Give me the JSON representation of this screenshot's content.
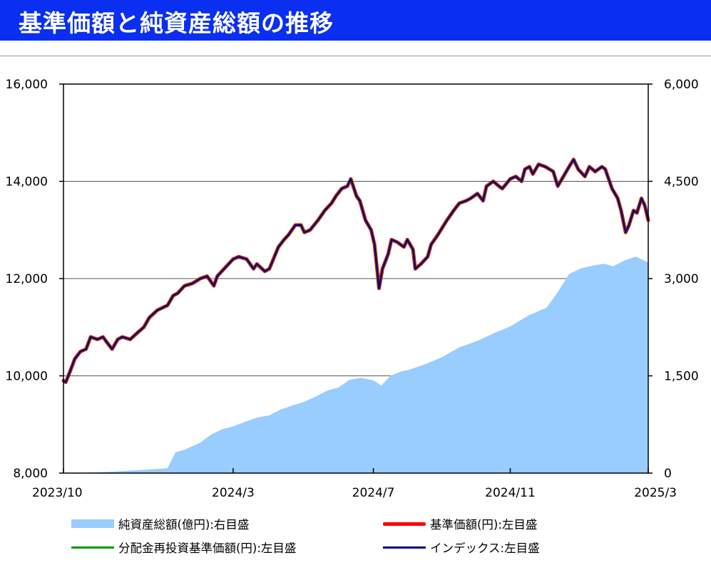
{
  "title": "基準価額と純資産総額の推移",
  "chart_data": {
    "type": "line",
    "x_tick_labels": [
      "2023/10",
      "2024/3",
      "2024/7",
      "2024/11",
      "2025/3"
    ],
    "x_range": [
      "2023/10/31",
      "2025/3/31"
    ],
    "x_ticks": [
      "2023/10/31",
      "2024/3/29",
      "2024/7/31",
      "2024/11/29",
      "2025/3/31"
    ],
    "y_left": {
      "range": [
        8000,
        16000
      ],
      "ticks": [
        8000,
        10000,
        12000,
        14000,
        16000
      ],
      "labels": [
        "8,000",
        "10,000",
        "12,000",
        "14,000",
        "16,000"
      ]
    },
    "y_right": {
      "range": [
        0,
        6000
      ],
      "ticks": [
        0,
        1500,
        3000,
        4500,
        6000
      ],
      "labels": [
        "0",
        "1,500",
        "3,000",
        "4,500",
        "6,000"
      ]
    },
    "grid": "horizontal",
    "colors": {
      "area": "#99ccff",
      "price": "#ff0000",
      "reinvest": "#009900",
      "index": "#000080"
    },
    "series": [
      {
        "name": "純資産総額(億円):右目盛",
        "kind": "area",
        "axis": "right",
        "points": [
          [
            "2023/10/31",
            0
          ],
          [
            "2023/11/15",
            5
          ],
          [
            "2023/11/30",
            12
          ],
          [
            "2023/12/15",
            25
          ],
          [
            "2023/12/29",
            40
          ],
          [
            "2024/1/15",
            55
          ],
          [
            "2024/1/31",
            75
          ],
          [
            "2024/2/7",
            320
          ],
          [
            "2024/2/15",
            360
          ],
          [
            "2024/2/29",
            470
          ],
          [
            "2024/3/10",
            600
          ],
          [
            "2024/3/20",
            680
          ],
          [
            "2024/3/29",
            720
          ],
          [
            "2024/4/10",
            800
          ],
          [
            "2024/4/20",
            860
          ],
          [
            "2024/4/30",
            890
          ],
          [
            "2024/5/10",
            980
          ],
          [
            "2024/5/20",
            1040
          ],
          [
            "2024/5/31",
            1100
          ],
          [
            "2024/6/10",
            1180
          ],
          [
            "2024/6/20",
            1270
          ],
          [
            "2024/6/30",
            1320
          ],
          [
            "2024/7/10",
            1440
          ],
          [
            "2024/7/20",
            1470
          ],
          [
            "2024/7/31",
            1430
          ],
          [
            "2024/8/7",
            1350
          ],
          [
            "2024/8/15",
            1500
          ],
          [
            "2024/8/25",
            1570
          ],
          [
            "2024/8/31",
            1590
          ],
          [
            "2024/9/15",
            1680
          ],
          [
            "2024/9/30",
            1790
          ],
          [
            "2024/10/15",
            1940
          ],
          [
            "2024/10/31",
            2040
          ],
          [
            "2024/11/15",
            2160
          ],
          [
            "2024/11/29",
            2260
          ],
          [
            "2024/12/15",
            2430
          ],
          [
            "2024/12/31",
            2550
          ],
          [
            "2025/1/10",
            2790
          ],
          [
            "2025/1/20",
            3070
          ],
          [
            "2025/1/31",
            3160
          ],
          [
            "2025/2/10",
            3200
          ],
          [
            "2025/2/20",
            3230
          ],
          [
            "2025/2/28",
            3190
          ],
          [
            "2025/3/10",
            3280
          ],
          [
            "2025/3/20",
            3340
          ],
          [
            "2025/3/31",
            3250
          ]
        ]
      },
      {
        "name": "基準価額(円):左目盛",
        "kind": "line",
        "axis": "left",
        "points": [
          [
            "2023/10/31",
            9900
          ],
          [
            "2023/11/2",
            9870
          ],
          [
            "2023/11/6",
            10100
          ],
          [
            "2023/11/10",
            10350
          ],
          [
            "2023/11/15",
            10500
          ],
          [
            "2023/11/20",
            10550
          ],
          [
            "2023/11/24",
            10800
          ],
          [
            "2023/11/30",
            10750
          ],
          [
            "2023/12/5",
            10800
          ],
          [
            "2023/12/8",
            10700
          ],
          [
            "2023/12/13",
            10550
          ],
          [
            "2023/12/18",
            10750
          ],
          [
            "2023/12/22",
            10800
          ],
          [
            "2023/12/29",
            10750
          ],
          [
            "2024/1/5",
            10900
          ],
          [
            "2024/1/10",
            11000
          ],
          [
            "2024/1/15",
            11200
          ],
          [
            "2024/1/22",
            11350
          ],
          [
            "2024/1/31",
            11450
          ],
          [
            "2024/2/5",
            11650
          ],
          [
            "2024/2/9",
            11700
          ],
          [
            "2024/2/15",
            11850
          ],
          [
            "2024/2/22",
            11900
          ],
          [
            "2024/2/29",
            12000
          ],
          [
            "2024/3/6",
            12050
          ],
          [
            "2024/3/12",
            11850
          ],
          [
            "2024/3/15",
            12050
          ],
          [
            "2024/3/21",
            12200
          ],
          [
            "2024/3/29",
            12400
          ],
          [
            "2024/4/3",
            12450
          ],
          [
            "2024/4/10",
            12400
          ],
          [
            "2024/4/16",
            12200
          ],
          [
            "2024/4/19",
            12300
          ],
          [
            "2024/4/26",
            12150
          ],
          [
            "2024/4/30",
            12200
          ],
          [
            "2024/5/8",
            12650
          ],
          [
            "2024/5/13",
            12800
          ],
          [
            "2024/5/17",
            12900
          ],
          [
            "2024/5/23",
            13100
          ],
          [
            "2024/5/28",
            13100
          ],
          [
            "2024/5/31",
            12950
          ],
          [
            "2024/6/5",
            13000
          ],
          [
            "2024/6/12",
            13200
          ],
          [
            "2024/6/18",
            13400
          ],
          [
            "2024/6/24",
            13550
          ],
          [
            "2024/6/28",
            13700
          ],
          [
            "2024/7/3",
            13850
          ],
          [
            "2024/7/8",
            13900
          ],
          [
            "2024/7/11",
            14050
          ],
          [
            "2024/7/16",
            13700
          ],
          [
            "2024/7/19",
            13600
          ],
          [
            "2024/7/24",
            13200
          ],
          [
            "2024/7/29",
            13000
          ],
          [
            "2024/8/1",
            12700
          ],
          [
            "2024/8/5",
            11800
          ],
          [
            "2024/8/8",
            12200
          ],
          [
            "2024/8/13",
            12500
          ],
          [
            "2024/8/16",
            12800
          ],
          [
            "2024/8/21",
            12750
          ],
          [
            "2024/8/27",
            12650
          ],
          [
            "2024/8/30",
            12800
          ],
          [
            "2024/9/4",
            12600
          ],
          [
            "2024/9/6",
            12200
          ],
          [
            "2024/9/11",
            12300
          ],
          [
            "2024/9/17",
            12450
          ],
          [
            "2024/9/20",
            12700
          ],
          [
            "2024/9/26",
            12900
          ],
          [
            "2024/9/30",
            13050
          ],
          [
            "2024/10/4",
            13200
          ],
          [
            "2024/10/10",
            13400
          ],
          [
            "2024/10/15",
            13550
          ],
          [
            "2024/10/21",
            13600
          ],
          [
            "2024/10/25",
            13650
          ],
          [
            "2024/10/31",
            13750
          ],
          [
            "2024/11/5",
            13600
          ],
          [
            "2024/11/8",
            13900
          ],
          [
            "2024/11/14",
            14000
          ],
          [
            "2024/11/19",
            13900
          ],
          [
            "2024/11/22",
            13850
          ],
          [
            "2024/11/29",
            14050
          ],
          [
            "2024/12/4",
            14100
          ],
          [
            "2024/12/9",
            14000
          ],
          [
            "2024/12/12",
            14250
          ],
          [
            "2024/12/16",
            14300
          ],
          [
            "2024/12/19",
            14150
          ],
          [
            "2024/12/24",
            14350
          ],
          [
            "2024/12/30",
            14300
          ],
          [
            "2025/1/6",
            14200
          ],
          [
            "2025/1/10",
            13900
          ],
          [
            "2025/1/15",
            14100
          ],
          [
            "2025/1/20",
            14300
          ],
          [
            "2025/1/24",
            14450
          ],
          [
            "2025/1/28",
            14250
          ],
          [
            "2025/2/3",
            14100
          ],
          [
            "2025/2/7",
            14300
          ],
          [
            "2025/2/12",
            14200
          ],
          [
            "2025/2/18",
            14300
          ],
          [
            "2025/2/21",
            14250
          ],
          [
            "2025/2/27",
            13850
          ],
          [
            "2025/3/4",
            13650
          ],
          [
            "2025/3/7",
            13400
          ],
          [
            "2025/3/11",
            12950
          ],
          [
            "2025/3/14",
            13100
          ],
          [
            "2025/3/18",
            13400
          ],
          [
            "2025/3/21",
            13350
          ],
          [
            "2025/3/25",
            13650
          ],
          [
            "2025/3/28",
            13500
          ],
          [
            "2025/3/31",
            13200
          ]
        ]
      },
      {
        "name": "分配金再投資基準価額(円):左目盛",
        "kind": "line",
        "axis": "left",
        "same_as": "基準価額(円):左目盛"
      },
      {
        "name": "インデックス:左目盛",
        "kind": "line",
        "axis": "left",
        "same_as": "基準価額(円):左目盛"
      }
    ]
  },
  "legend": [
    {
      "label": "純資産総額(億円):右目盛",
      "swatch": "area"
    },
    {
      "label": "基準価額(円):左目盛",
      "swatch": "red"
    },
    {
      "label": "分配金再投資基準価額(円):左目盛",
      "swatch": "green"
    },
    {
      "label": "インデックス:左目盛",
      "swatch": "navy"
    }
  ]
}
